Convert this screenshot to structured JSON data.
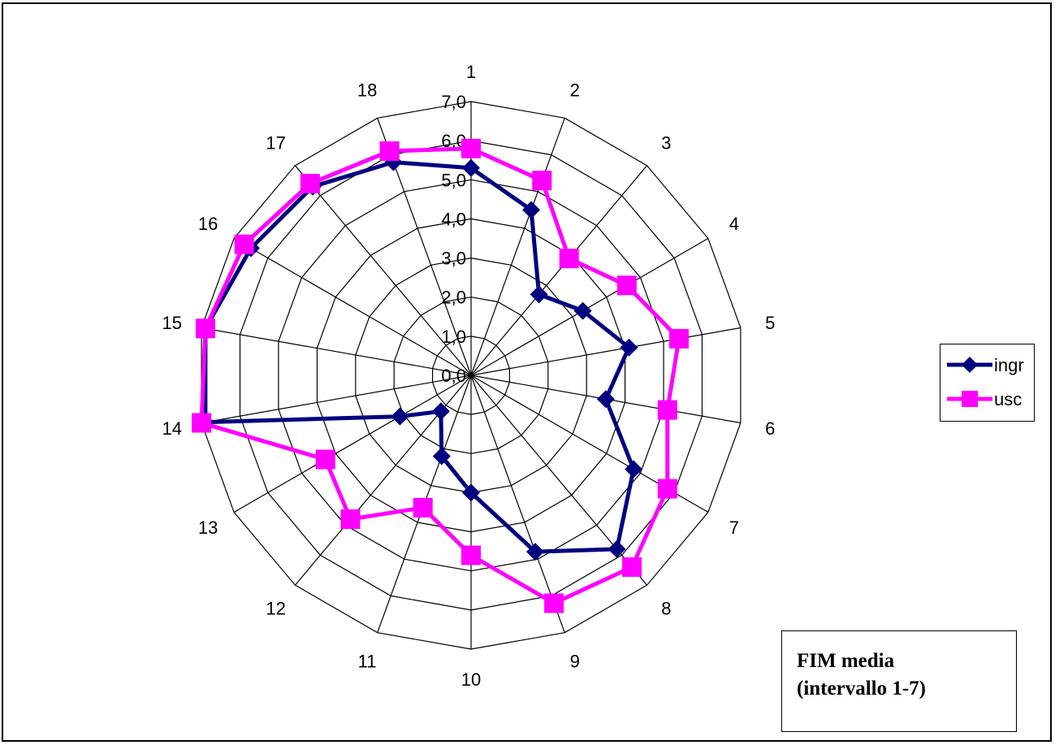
{
  "chart_data": {
    "type": "radar",
    "categories": [
      "1",
      "2",
      "3",
      "4",
      "5",
      "6",
      "7",
      "8",
      "9",
      "10",
      "11",
      "12",
      "13",
      "14",
      "15",
      "16",
      "17",
      "18"
    ],
    "tick_labels": [
      "0,0",
      "1,0",
      "2,0",
      "3,0",
      "4,0",
      "5,0",
      "6,0",
      "7,0"
    ],
    "rlim": [
      0,
      7
    ],
    "series": [
      {
        "name": "ingr",
        "color": "#000080",
        "marker": "diamond",
        "values": [
          5.3,
          4.5,
          2.7,
          3.3,
          4.1,
          3.5,
          4.8,
          5.8,
          4.8,
          3.0,
          2.2,
          1.2,
          2.1,
          6.9,
          6.9,
          6.5,
          6.3,
          5.8
        ]
      },
      {
        "name": "usc",
        "color": "#FF00FF",
        "marker": "square",
        "values": [
          5.8,
          5.3,
          3.9,
          4.6,
          5.4,
          5.1,
          5.8,
          6.4,
          6.2,
          4.6,
          3.6,
          4.8,
          4.3,
          7.0,
          6.9,
          6.7,
          6.4,
          6.1
        ]
      }
    ],
    "legend_position": "right",
    "grid": true
  },
  "note": {
    "line1": "FIM media",
    "line2": "(intervallo 1-7)"
  }
}
